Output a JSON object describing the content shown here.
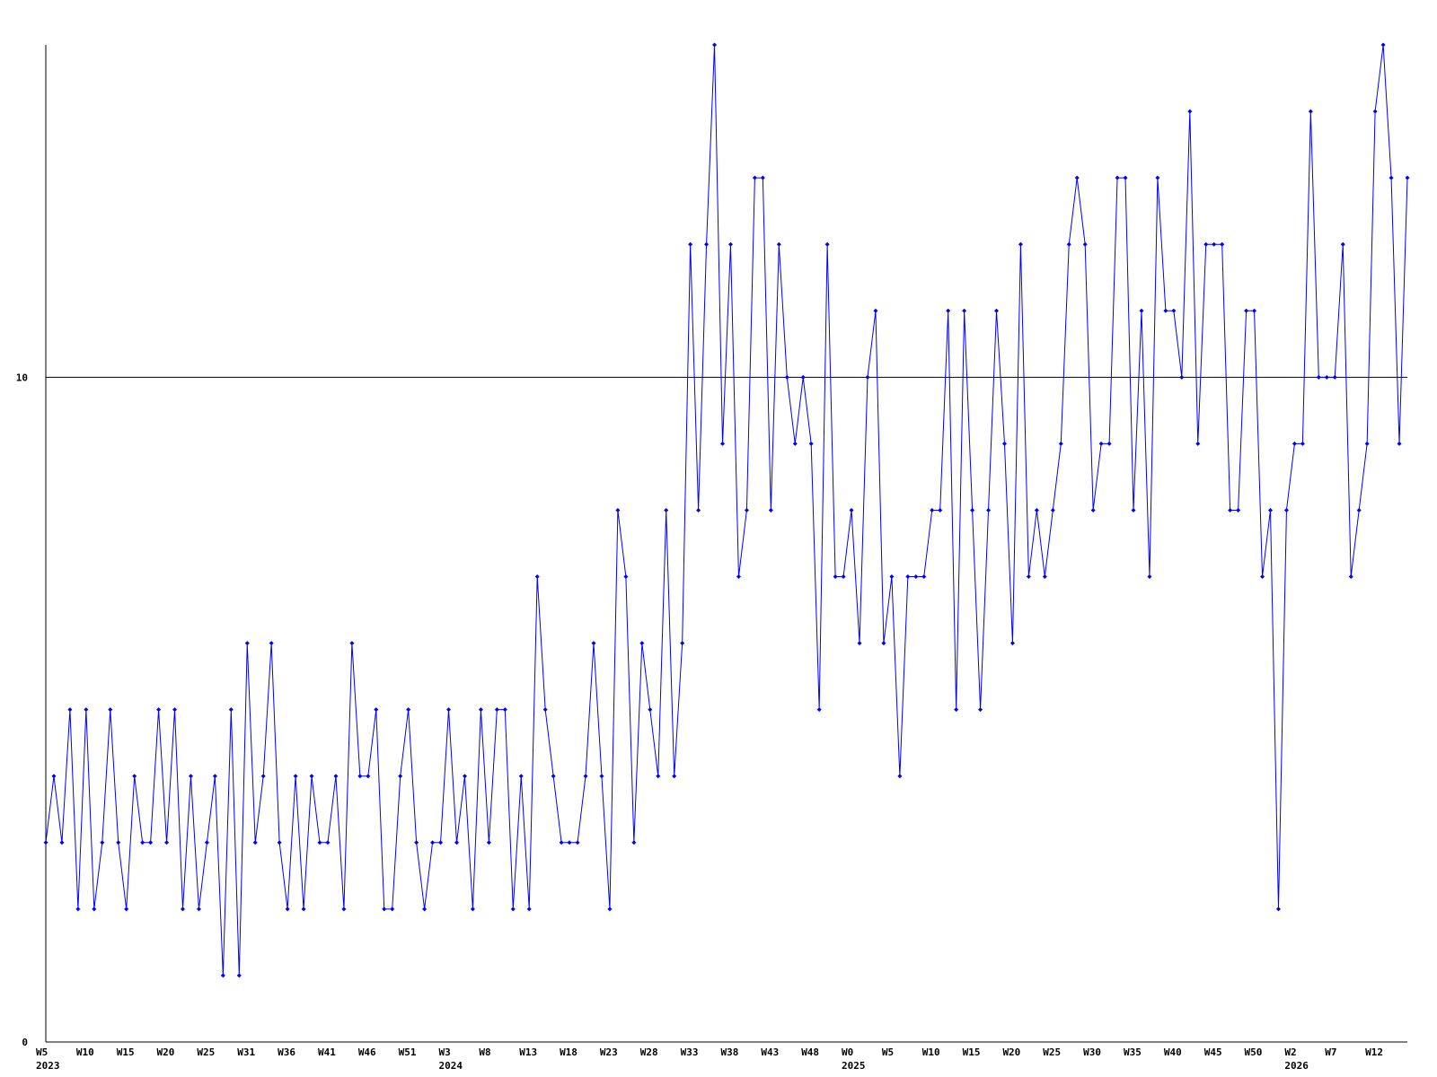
{
  "chart_data": {
    "type": "line",
    "categories": [
      "W5\n2023",
      null,
      null,
      null,
      null,
      "W10",
      null,
      null,
      null,
      null,
      "W15",
      null,
      null,
      null,
      null,
      "W20",
      null,
      null,
      null,
      null,
      "W25",
      null,
      null,
      null,
      null,
      "W31",
      null,
      null,
      null,
      null,
      "W36",
      null,
      null,
      null,
      null,
      "W41",
      null,
      null,
      null,
      null,
      "W46",
      null,
      null,
      null,
      null,
      "W51",
      null,
      null,
      null,
      null,
      "W3\n2024",
      null,
      null,
      null,
      null,
      "W8",
      null,
      null,
      null,
      null,
      "W13",
      null,
      null,
      null,
      null,
      "W18",
      null,
      null,
      null,
      null,
      "W23",
      null,
      null,
      null,
      null,
      "W28",
      null,
      null,
      null,
      null,
      "W33",
      null,
      null,
      null,
      null,
      "W38",
      null,
      null,
      null,
      null,
      "W43",
      null,
      null,
      null,
      null,
      "W48",
      null,
      null,
      null,
      null,
      "W0\n2025",
      null,
      null,
      null,
      null,
      "W5",
      null,
      null,
      null,
      null,
      "W10",
      null,
      null,
      null,
      null,
      "W15",
      null,
      null,
      null,
      null,
      "W20",
      null,
      null,
      null,
      null,
      "W25",
      null,
      null,
      null,
      null,
      "W30",
      null,
      null,
      null,
      null,
      "W35",
      null,
      null,
      null,
      null,
      "W40",
      null,
      null,
      null,
      null,
      "W45",
      null,
      null,
      null,
      null,
      "W50",
      null,
      null,
      null,
      null,
      "W2\n2026",
      null,
      null,
      null,
      null,
      "W7",
      null,
      null,
      null,
      null,
      "W12",
      null,
      null,
      null,
      null
    ],
    "series": [
      {
        "color": "#0000ff",
        "values": [
          3,
          4,
          3,
          5,
          2,
          5,
          2,
          3,
          5,
          3,
          2,
          4,
          3,
          3,
          5,
          3,
          5,
          2,
          4,
          2,
          3,
          4,
          1,
          5,
          1,
          6,
          3,
          4,
          6,
          3,
          2,
          4,
          2,
          4,
          3,
          3,
          4,
          2,
          6,
          4,
          4,
          5,
          2,
          2,
          4,
          5,
          3,
          2,
          3,
          3,
          5,
          3,
          4,
          2,
          5,
          3,
          5,
          5,
          2,
          4,
          2,
          7,
          5,
          4,
          3,
          3,
          3,
          4,
          6,
          4,
          2,
          8,
          7,
          3,
          6,
          5,
          4,
          8,
          4,
          6,
          12,
          8,
          12,
          15,
          9,
          12,
          7,
          8,
          13,
          13,
          8,
          12,
          10,
          9,
          10,
          9,
          5,
          12,
          7,
          7,
          8,
          6,
          10,
          11,
          6,
          7,
          4,
          7,
          7,
          7,
          8,
          8,
          11,
          5,
          11,
          8,
          5,
          8,
          11,
          9,
          6,
          12,
          7,
          8,
          7,
          8,
          9,
          12,
          13,
          12,
          8,
          9,
          9,
          13,
          13,
          8,
          11,
          7,
          13,
          11,
          11,
          10,
          14,
          9,
          12,
          12,
          12,
          8,
          8,
          11,
          11,
          7,
          8,
          2,
          8,
          9,
          9,
          14,
          10,
          10,
          10,
          12,
          7,
          8,
          9,
          14,
          15,
          13,
          9,
          13
        ]
      }
    ],
    "ylim": [
      0,
      15
    ],
    "yticks": [
      0,
      10
    ],
    "grid": true
  }
}
